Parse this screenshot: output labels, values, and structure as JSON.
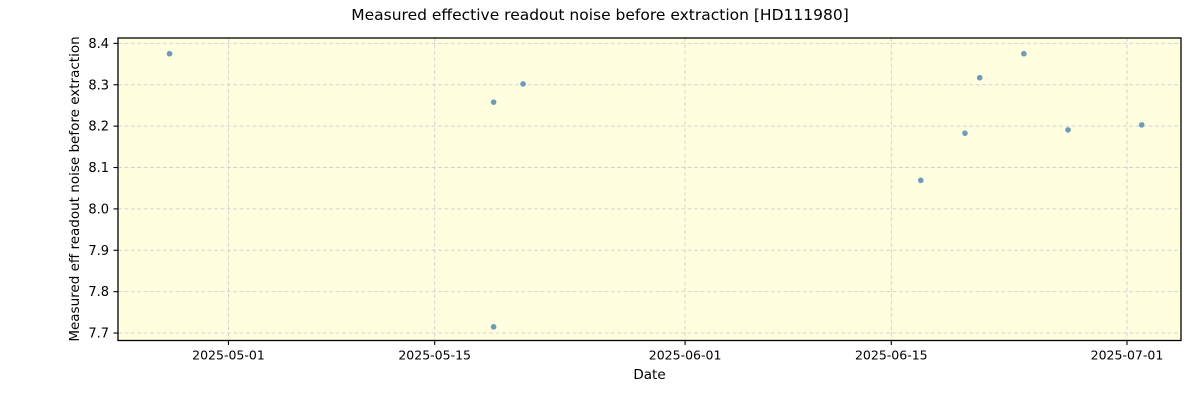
{
  "chart_data": {
    "type": "scatter",
    "title": "Measured effective readout noise before extraction [HD111980]",
    "xlabel": "Date",
    "ylabel": "Measured eff readout noise before extraction",
    "x_ticks": [
      "2025-05-01",
      "2025-05-15",
      "2025-06-01",
      "2025-06-15",
      "2025-07-01"
    ],
    "y_ticks": [
      7.7,
      7.8,
      7.9,
      8.0,
      8.1,
      8.2,
      8.3,
      8.4
    ],
    "xlim": [
      "2025-04-23T12:00:00Z",
      "2025-07-04T16:00:00Z"
    ],
    "ylim": [
      7.682,
      8.413
    ],
    "grid": true,
    "legend": false,
    "series": [
      {
        "name": "measured-effective-readout-noise",
        "marker": "circle",
        "color": "#6b9bbd",
        "points": [
          {
            "date": "2025-04-27",
            "value": 8.375
          },
          {
            "date": "2025-05-19",
            "value": 8.258
          },
          {
            "date": "2025-05-19",
            "value": 7.715
          },
          {
            "date": "2025-05-21",
            "value": 8.302
          },
          {
            "date": "2025-06-17",
            "value": 8.069
          },
          {
            "date": "2025-06-20",
            "value": 8.183
          },
          {
            "date": "2025-06-21",
            "value": 8.317
          },
          {
            "date": "2025-06-24",
            "value": 8.375
          },
          {
            "date": "2025-06-27",
            "value": 8.191
          },
          {
            "date": "2025-07-02",
            "value": 8.203
          }
        ]
      }
    ],
    "colors": {
      "plot_background": "#ffffe0",
      "figure_background": "#ffffff",
      "grid": "#d4d4d4",
      "spine": "#000000",
      "text": "#000000"
    }
  }
}
